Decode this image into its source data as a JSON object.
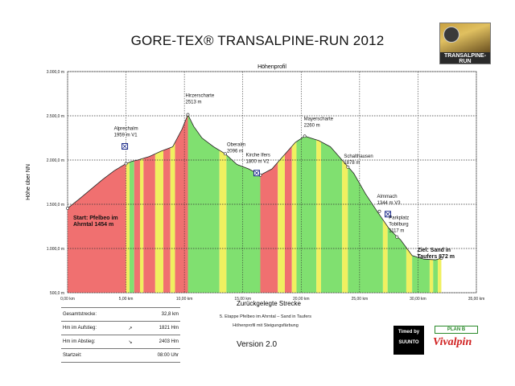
{
  "title": "GORE-TEX® TRANSALPINE-RUN 2012",
  "logo_text": "TRANSALPINE-RUN",
  "logo_badge": "GORE-TEX",
  "chart_data": {
    "type": "area",
    "title": "Höhenprofil",
    "xlabel": "Zurückgelegte Strecke",
    "ylabel": "Höhe über NN",
    "xlim": [
      0,
      35
    ],
    "ylim": [
      500,
      3000
    ],
    "xticks": [
      "0,00 km",
      "5,00 km",
      "10,00 km",
      "15,00 km",
      "20,00 km",
      "25,00 km",
      "30,00 km",
      "35,00 km"
    ],
    "yticks": [
      "3.000,0 m",
      "2.500,0 m",
      "2.000,0 m",
      "1.500,0 m",
      "1.000,0 m",
      "500,0 m"
    ],
    "grid": true,
    "colors": {
      "steep": "#f07070",
      "moderate": "#f0f060",
      "gentle": "#80e070",
      "line": "#222222",
      "grid": "#333333"
    },
    "profile": [
      [
        0.0,
        1454
      ],
      [
        1.0,
        1560
      ],
      [
        2.0,
        1670
      ],
      [
        3.0,
        1780
      ],
      [
        4.0,
        1880
      ],
      [
        5.0,
        1959
      ],
      [
        5.5,
        1985
      ],
      [
        6.0,
        2000
      ],
      [
        7.0,
        2040
      ],
      [
        8.0,
        2100
      ],
      [
        9.0,
        2150
      ],
      [
        9.8,
        2350
      ],
      [
        10.3,
        2513
      ],
      [
        10.8,
        2380
      ],
      [
        11.5,
        2250
      ],
      [
        12.5,
        2150
      ],
      [
        13.5,
        2070
      ],
      [
        14.5,
        1950
      ],
      [
        15.5,
        1900
      ],
      [
        16.5,
        1830
      ],
      [
        17.5,
        1900
      ],
      [
        18.5,
        2050
      ],
      [
        19.5,
        2200
      ],
      [
        20.3,
        2270
      ],
      [
        21.5,
        2220
      ],
      [
        22.5,
        2150
      ],
      [
        23.5,
        2000
      ],
      [
        24.5,
        1850
      ],
      [
        25.5,
        1620
      ],
      [
        26.5,
        1420
      ],
      [
        27.5,
        1230
      ],
      [
        28.0,
        1160
      ],
      [
        28.5,
        1100
      ],
      [
        29.5,
        920
      ],
      [
        30.5,
        880
      ],
      [
        31.5,
        872
      ],
      [
        32.0,
        890
      ]
    ],
    "segments": [
      [
        0.0,
        "steep"
      ],
      [
        5.0,
        "moderate"
      ],
      [
        5.3,
        "gentle"
      ],
      [
        5.7,
        "steep"
      ],
      [
        6.2,
        "moderate"
      ],
      [
        6.5,
        "steep"
      ],
      [
        7.5,
        "moderate"
      ],
      [
        8.2,
        "steep"
      ],
      [
        8.8,
        "moderate"
      ],
      [
        9.2,
        "steep"
      ],
      [
        10.3,
        "gentle"
      ],
      [
        13.0,
        "moderate"
      ],
      [
        13.6,
        "gentle"
      ],
      [
        16.5,
        "steep"
      ],
      [
        18.0,
        "moderate"
      ],
      [
        18.6,
        "steep"
      ],
      [
        19.2,
        "moderate"
      ],
      [
        19.6,
        "gentle"
      ],
      [
        21.3,
        "moderate"
      ],
      [
        21.7,
        "gentle"
      ],
      [
        23.5,
        "moderate"
      ],
      [
        24.0,
        "gentle"
      ],
      [
        27.0,
        "moderate"
      ],
      [
        27.4,
        "gentle"
      ],
      [
        29.0,
        "moderate"
      ],
      [
        29.5,
        "gentle"
      ],
      [
        31.0,
        "moderate"
      ],
      [
        31.3,
        "gentle"
      ],
      [
        31.7,
        "moderate"
      ],
      [
        32.0,
        "gentle"
      ]
    ],
    "annotations": [
      {
        "lines": [
          "Hirzerscharte",
          "2513 m"
        ],
        "x": 10.3,
        "y": 2513
      },
      {
        "lines": [
          "Alprechalm",
          "1959 m V1"
        ],
        "x": 5.0,
        "y": 1959,
        "marker": true
      },
      {
        "lines": [
          "Oberalm",
          "2096 m"
        ],
        "x": 13.5,
        "y": 2070
      },
      {
        "lines": [
          "Kirche Ifers",
          "1800 m V2"
        ],
        "x": 16.5,
        "y": 1830,
        "marker": true
      },
      {
        "lines": [
          "Mayerscharte",
          "2260 m"
        ],
        "x": 20.3,
        "y": 2270
      },
      {
        "lines": [
          "Schalthausen",
          "1878 m"
        ],
        "x": 24.0,
        "y": 1920
      },
      {
        "lines": [
          "Almmach",
          "1344 m V3"
        ],
        "x": 26.7,
        "y": 1420,
        "marker": true
      },
      {
        "lines": [
          "Parkplatz",
          "Tobilburg",
          "1117 m"
        ],
        "x": 28.2,
        "y": 1130
      },
      {
        "lines": [
          "Start: Pfelbeo im",
          "Ahrntal 1454 m"
        ],
        "x": 0.0,
        "y": 1454,
        "bold": true
      },
      {
        "lines": [
          "Ziel: Sand in",
          "Taufers 872 m"
        ],
        "x": 32.0,
        "y": 890,
        "bold": true
      }
    ]
  },
  "stats": [
    {
      "label": "Gesamtstrecke:",
      "icon": "",
      "value": "32,8 km"
    },
    {
      "label": "Hm im Aufstieg:",
      "icon": "up-arrow",
      "value": "1821 Hm"
    },
    {
      "label": "Hm im Abstieg:",
      "icon": "down-arrow",
      "value": "2403 Hm"
    },
    {
      "label": "Startzeit:",
      "icon": "",
      "value": "08:00 Uhr"
    }
  ],
  "stage": {
    "line1": "5. Etappe Pfelbeo im Ahrntal – Sand in Taufers",
    "line2": "Höhenprofil mit Steigungsfärbung"
  },
  "version": "Version 2.0",
  "sponsors": {
    "timed_by": "Timed by",
    "suunto": "SUUNTO",
    "planb": "PLAN B",
    "vivalpin": "Vivalpin"
  }
}
